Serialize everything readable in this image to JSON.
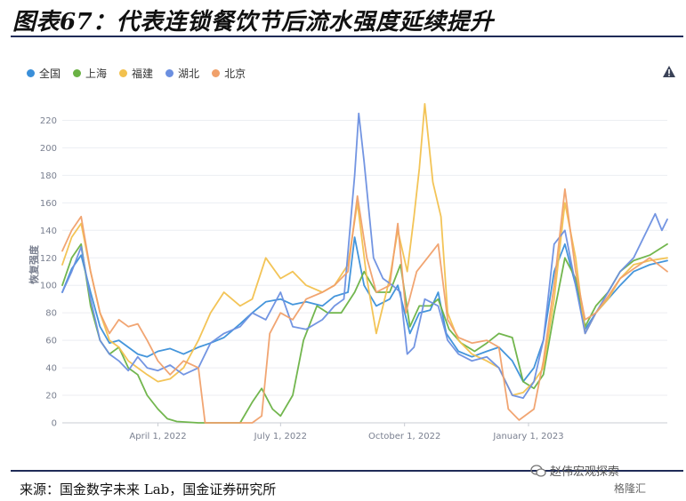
{
  "header": {
    "title": "图表67：代表连锁餐饮节后流水强度延续提升"
  },
  "legend": {
    "items": [
      {
        "label": "全国",
        "color": "#3a8fd9"
      },
      {
        "label": "上海",
        "color": "#6ab244"
      },
      {
        "label": "福建",
        "color": "#f2c14e"
      },
      {
        "label": "湖北",
        "color": "#6b8fe0"
      },
      {
        "label": "北京",
        "color": "#f0a06a"
      }
    ]
  },
  "footer": {
    "source": "来源：国金数字未来 Lab，国金证券研究所",
    "watermark_text": "赵伟宏观探索",
    "watermark_brand": "格隆汇"
  },
  "chart_data": {
    "type": "line",
    "ylabel": "恢复强度",
    "ylim": [
      0,
      230
    ],
    "yticks": [
      0,
      20,
      40,
      60,
      80,
      100,
      120,
      140,
      160,
      180,
      200,
      220
    ],
    "xlim": [
      "2022-01-20",
      "2023-04-14"
    ],
    "xticks": [
      {
        "date": "2022-04-01",
        "label": "April 1, 2022"
      },
      {
        "date": "2022-07-01",
        "label": "July 1, 2022"
      },
      {
        "date": "2022-10-01",
        "label": "October 1, 2022"
      },
      {
        "date": "2023-01-01",
        "label": "January 1, 2023"
      }
    ],
    "grid": true,
    "legend_position": "top-left",
    "series": [
      {
        "name": "全国",
        "color": "#3a8fd9",
        "points": [
          [
            "2022-01-20",
            95
          ],
          [
            "2022-01-27",
            112
          ],
          [
            "2022-02-03",
            122
          ],
          [
            "2022-02-10",
            95
          ],
          [
            "2022-02-17",
            70
          ],
          [
            "2022-02-24",
            58
          ],
          [
            "2022-03-03",
            60
          ],
          [
            "2022-03-10",
            55
          ],
          [
            "2022-03-17",
            50
          ],
          [
            "2022-03-24",
            48
          ],
          [
            "2022-04-01",
            52
          ],
          [
            "2022-04-10",
            54
          ],
          [
            "2022-04-20",
            50
          ],
          [
            "2022-05-01",
            55
          ],
          [
            "2022-05-10",
            58
          ],
          [
            "2022-05-20",
            62
          ],
          [
            "2022-06-01",
            72
          ],
          [
            "2022-06-10",
            80
          ],
          [
            "2022-06-20",
            88
          ],
          [
            "2022-07-01",
            90
          ],
          [
            "2022-07-10",
            86
          ],
          [
            "2022-07-20",
            88
          ],
          [
            "2022-08-01",
            85
          ],
          [
            "2022-08-10",
            92
          ],
          [
            "2022-08-20",
            95
          ],
          [
            "2022-08-25",
            135
          ],
          [
            "2022-09-01",
            100
          ],
          [
            "2022-09-10",
            85
          ],
          [
            "2022-09-20",
            90
          ],
          [
            "2022-09-26",
            100
          ],
          [
            "2022-10-05",
            65
          ],
          [
            "2022-10-12",
            80
          ],
          [
            "2022-10-20",
            82
          ],
          [
            "2022-10-26",
            95
          ],
          [
            "2022-11-01",
            65
          ],
          [
            "2022-11-10",
            52
          ],
          [
            "2022-11-20",
            48
          ],
          [
            "2022-12-01",
            52
          ],
          [
            "2022-12-10",
            55
          ],
          [
            "2022-12-20",
            45
          ],
          [
            "2022-12-28",
            30
          ],
          [
            "2023-01-05",
            40
          ],
          [
            "2023-01-12",
            60
          ],
          [
            "2023-01-20",
            110
          ],
          [
            "2023-01-28",
            130
          ],
          [
            "2023-02-05",
            100
          ],
          [
            "2023-02-12",
            68
          ],
          [
            "2023-02-20",
            80
          ],
          [
            "2023-03-01",
            90
          ],
          [
            "2023-03-10",
            100
          ],
          [
            "2023-03-20",
            110
          ],
          [
            "2023-04-01",
            115
          ],
          [
            "2023-04-14",
            118
          ]
        ]
      },
      {
        "name": "上海",
        "color": "#6ab244",
        "points": [
          [
            "2022-01-20",
            100
          ],
          [
            "2022-01-27",
            120
          ],
          [
            "2022-02-03",
            130
          ],
          [
            "2022-02-10",
            85
          ],
          [
            "2022-02-17",
            60
          ],
          [
            "2022-02-24",
            50
          ],
          [
            "2022-03-03",
            55
          ],
          [
            "2022-03-10",
            40
          ],
          [
            "2022-03-17",
            35
          ],
          [
            "2022-03-24",
            20
          ],
          [
            "2022-04-01",
            10
          ],
          [
            "2022-04-08",
            3
          ],
          [
            "2022-04-15",
            1
          ],
          [
            "2022-05-01",
            0
          ],
          [
            "2022-05-15",
            0
          ],
          [
            "2022-06-01",
            0
          ],
          [
            "2022-06-10",
            15
          ],
          [
            "2022-06-17",
            25
          ],
          [
            "2022-06-25",
            10
          ],
          [
            "2022-07-01",
            5
          ],
          [
            "2022-07-10",
            20
          ],
          [
            "2022-07-18",
            60
          ],
          [
            "2022-07-28",
            85
          ],
          [
            "2022-08-05",
            80
          ],
          [
            "2022-08-15",
            80
          ],
          [
            "2022-08-25",
            95
          ],
          [
            "2022-09-01",
            110
          ],
          [
            "2022-09-10",
            95
          ],
          [
            "2022-09-20",
            95
          ],
          [
            "2022-09-28",
            115
          ],
          [
            "2022-10-05",
            70
          ],
          [
            "2022-10-12",
            85
          ],
          [
            "2022-10-20",
            85
          ],
          [
            "2022-10-26",
            90
          ],
          [
            "2022-11-03",
            68
          ],
          [
            "2022-11-12",
            58
          ],
          [
            "2022-11-22",
            52
          ],
          [
            "2022-12-01",
            58
          ],
          [
            "2022-12-10",
            65
          ],
          [
            "2022-12-20",
            62
          ],
          [
            "2022-12-28",
            30
          ],
          [
            "2023-01-05",
            25
          ],
          [
            "2023-01-12",
            35
          ],
          [
            "2023-01-20",
            80
          ],
          [
            "2023-01-28",
            120
          ],
          [
            "2023-02-05",
            105
          ],
          [
            "2023-02-12",
            70
          ],
          [
            "2023-02-20",
            85
          ],
          [
            "2023-03-01",
            95
          ],
          [
            "2023-03-10",
            110
          ],
          [
            "2023-03-20",
            118
          ],
          [
            "2023-04-01",
            122
          ],
          [
            "2023-04-14",
            130
          ]
        ]
      },
      {
        "name": "福建",
        "color": "#f2c14e",
        "points": [
          [
            "2022-01-20",
            115
          ],
          [
            "2022-01-27",
            135
          ],
          [
            "2022-02-03",
            145
          ],
          [
            "2022-02-10",
            110
          ],
          [
            "2022-02-17",
            80
          ],
          [
            "2022-02-24",
            60
          ],
          [
            "2022-03-03",
            55
          ],
          [
            "2022-03-10",
            45
          ],
          [
            "2022-03-17",
            40
          ],
          [
            "2022-03-24",
            35
          ],
          [
            "2022-04-01",
            30
          ],
          [
            "2022-04-10",
            32
          ],
          [
            "2022-04-20",
            40
          ],
          [
            "2022-05-01",
            60
          ],
          [
            "2022-05-10",
            80
          ],
          [
            "2022-05-20",
            95
          ],
          [
            "2022-06-01",
            85
          ],
          [
            "2022-06-10",
            90
          ],
          [
            "2022-06-20",
            120
          ],
          [
            "2022-07-01",
            105
          ],
          [
            "2022-07-10",
            110
          ],
          [
            "2022-07-20",
            100
          ],
          [
            "2022-08-01",
            95
          ],
          [
            "2022-08-10",
            100
          ],
          [
            "2022-08-20",
            115
          ],
          [
            "2022-08-27",
            160
          ],
          [
            "2022-09-03",
            105
          ],
          [
            "2022-09-10",
            65
          ],
          [
            "2022-09-20",
            105
          ],
          [
            "2022-09-26",
            140
          ],
          [
            "2022-10-03",
            110
          ],
          [
            "2022-10-08",
            150
          ],
          [
            "2022-10-12",
            185
          ],
          [
            "2022-10-16",
            232
          ],
          [
            "2022-10-22",
            175
          ],
          [
            "2022-10-28",
            150
          ],
          [
            "2022-11-02",
            80
          ],
          [
            "2022-11-10",
            60
          ],
          [
            "2022-11-20",
            50
          ],
          [
            "2022-12-01",
            45
          ],
          [
            "2022-12-10",
            40
          ],
          [
            "2022-12-20",
            20
          ],
          [
            "2022-12-28",
            22
          ],
          [
            "2023-01-05",
            30
          ],
          [
            "2023-01-12",
            40
          ],
          [
            "2023-01-20",
            90
          ],
          [
            "2023-01-28",
            160
          ],
          [
            "2023-02-05",
            120
          ],
          [
            "2023-02-12",
            65
          ],
          [
            "2023-02-20",
            80
          ],
          [
            "2023-03-01",
            90
          ],
          [
            "2023-03-10",
            105
          ],
          [
            "2023-03-20",
            115
          ],
          [
            "2023-04-01",
            118
          ],
          [
            "2023-04-14",
            120
          ]
        ]
      },
      {
        "name": "湖北",
        "color": "#6b8fe0",
        "points": [
          [
            "2022-01-20",
            95
          ],
          [
            "2022-01-27",
            110
          ],
          [
            "2022-02-03",
            128
          ],
          [
            "2022-02-10",
            90
          ],
          [
            "2022-02-17",
            60
          ],
          [
            "2022-02-24",
            50
          ],
          [
            "2022-03-03",
            45
          ],
          [
            "2022-03-10",
            38
          ],
          [
            "2022-03-17",
            48
          ],
          [
            "2022-03-24",
            40
          ],
          [
            "2022-04-01",
            38
          ],
          [
            "2022-04-10",
            42
          ],
          [
            "2022-04-20",
            35
          ],
          [
            "2022-05-01",
            40
          ],
          [
            "2022-05-10",
            58
          ],
          [
            "2022-05-20",
            65
          ],
          [
            "2022-06-01",
            70
          ],
          [
            "2022-06-10",
            80
          ],
          [
            "2022-06-20",
            75
          ],
          [
            "2022-07-01",
            95
          ],
          [
            "2022-07-10",
            70
          ],
          [
            "2022-07-20",
            68
          ],
          [
            "2022-08-01",
            75
          ],
          [
            "2022-08-10",
            85
          ],
          [
            "2022-08-17",
            90
          ],
          [
            "2022-08-25",
            180
          ],
          [
            "2022-08-28",
            225
          ],
          [
            "2022-09-01",
            190
          ],
          [
            "2022-09-08",
            120
          ],
          [
            "2022-09-15",
            105
          ],
          [
            "2022-09-22",
            100
          ],
          [
            "2022-09-28",
            95
          ],
          [
            "2022-10-03",
            50
          ],
          [
            "2022-10-08",
            55
          ],
          [
            "2022-10-16",
            90
          ],
          [
            "2022-10-26",
            85
          ],
          [
            "2022-11-02",
            60
          ],
          [
            "2022-11-10",
            50
          ],
          [
            "2022-11-20",
            45
          ],
          [
            "2022-12-01",
            48
          ],
          [
            "2022-12-10",
            40
          ],
          [
            "2022-12-20",
            20
          ],
          [
            "2022-12-28",
            18
          ],
          [
            "2023-01-05",
            30
          ],
          [
            "2023-01-12",
            60
          ],
          [
            "2023-01-20",
            130
          ],
          [
            "2023-01-28",
            140
          ],
          [
            "2023-02-05",
            100
          ],
          [
            "2023-02-12",
            65
          ],
          [
            "2023-02-20",
            80
          ],
          [
            "2023-03-01",
            95
          ],
          [
            "2023-03-10",
            110
          ],
          [
            "2023-03-20",
            120
          ],
          [
            "2023-04-05",
            152
          ],
          [
            "2023-04-10",
            140
          ],
          [
            "2023-04-14",
            148
          ]
        ]
      },
      {
        "name": "北京",
        "color": "#f0a06a",
        "points": [
          [
            "2022-01-20",
            125
          ],
          [
            "2022-01-27",
            140
          ],
          [
            "2022-02-03",
            150
          ],
          [
            "2022-02-10",
            110
          ],
          [
            "2022-02-17",
            80
          ],
          [
            "2022-02-24",
            65
          ],
          [
            "2022-03-03",
            75
          ],
          [
            "2022-03-10",
            70
          ],
          [
            "2022-03-17",
            72
          ],
          [
            "2022-03-24",
            60
          ],
          [
            "2022-04-01",
            45
          ],
          [
            "2022-04-10",
            35
          ],
          [
            "2022-04-20",
            45
          ],
          [
            "2022-05-01",
            40
          ],
          [
            "2022-05-06",
            0
          ],
          [
            "2022-05-15",
            0
          ],
          [
            "2022-06-01",
            0
          ],
          [
            "2022-06-10",
            0
          ],
          [
            "2022-06-17",
            5
          ],
          [
            "2022-06-23",
            65
          ],
          [
            "2022-07-01",
            80
          ],
          [
            "2022-07-10",
            75
          ],
          [
            "2022-07-20",
            90
          ],
          [
            "2022-08-01",
            95
          ],
          [
            "2022-08-10",
            100
          ],
          [
            "2022-08-20",
            110
          ],
          [
            "2022-08-27",
            165
          ],
          [
            "2022-09-03",
            120
          ],
          [
            "2022-09-10",
            95
          ],
          [
            "2022-09-20",
            100
          ],
          [
            "2022-09-26",
            145
          ],
          [
            "2022-10-02",
            80
          ],
          [
            "2022-10-10",
            110
          ],
          [
            "2022-10-18",
            120
          ],
          [
            "2022-10-26",
            130
          ],
          [
            "2022-11-02",
            75
          ],
          [
            "2022-11-10",
            62
          ],
          [
            "2022-11-20",
            58
          ],
          [
            "2022-12-01",
            60
          ],
          [
            "2022-12-10",
            55
          ],
          [
            "2022-12-17",
            10
          ],
          [
            "2022-12-25",
            2
          ],
          [
            "2023-01-05",
            10
          ],
          [
            "2023-01-12",
            45
          ],
          [
            "2023-01-20",
            100
          ],
          [
            "2023-01-28",
            170
          ],
          [
            "2023-02-05",
            110
          ],
          [
            "2023-02-12",
            75
          ],
          [
            "2023-02-20",
            80
          ],
          [
            "2023-03-01",
            92
          ],
          [
            "2023-03-10",
            105
          ],
          [
            "2023-03-20",
            112
          ],
          [
            "2023-04-01",
            120
          ],
          [
            "2023-04-14",
            110
          ]
        ]
      }
    ]
  }
}
